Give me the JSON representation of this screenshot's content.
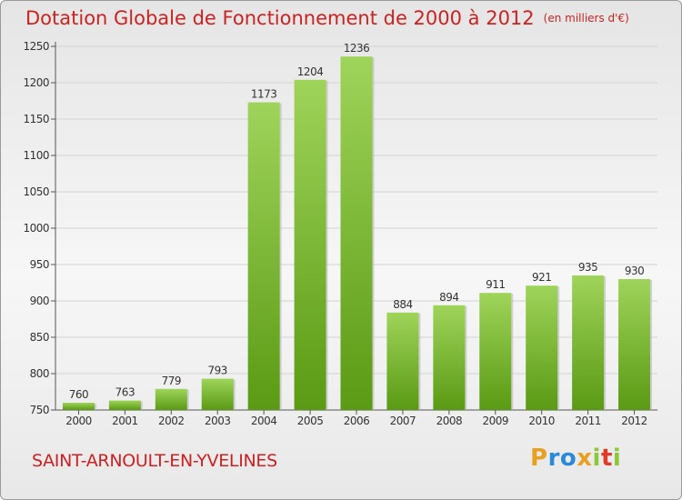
{
  "title": "Dotation Globale de Fonctionnement de 2000 à 2012",
  "unit": "(en milliers d'€)",
  "commune": "SAINT-ARNOULT-EN-YVELINES",
  "logo": {
    "letters": [
      "P",
      "r",
      "o",
      "x",
      "i",
      "t",
      "i"
    ],
    "colors": [
      "#e8a020",
      "#2a8ad8",
      "#2a8ad8",
      "#e8a020",
      "#8cc83a",
      "#e03a2a",
      "#8cc83a"
    ]
  },
  "colors": {
    "title": "#cc2222",
    "bar_light": "#9fd45a",
    "bar_dark": "#5a9a14"
  },
  "chart_data": {
    "type": "bar",
    "categories": [
      "2000",
      "2001",
      "2002",
      "2003",
      "2004",
      "2005",
      "2006",
      "2007",
      "2008",
      "2009",
      "2010",
      "2011",
      "2012"
    ],
    "values": [
      760,
      763,
      779,
      793,
      1173,
      1204,
      1236,
      884,
      894,
      911,
      921,
      935,
      930
    ],
    "title": "Dotation Globale de Fonctionnement de 2000 à 2012",
    "xlabel": "",
    "ylabel": "",
    "ylim": [
      750,
      1250
    ],
    "yticks": [
      750,
      800,
      850,
      900,
      950,
      1000,
      1050,
      1100,
      1150,
      1200,
      1250
    ],
    "grid": true
  }
}
